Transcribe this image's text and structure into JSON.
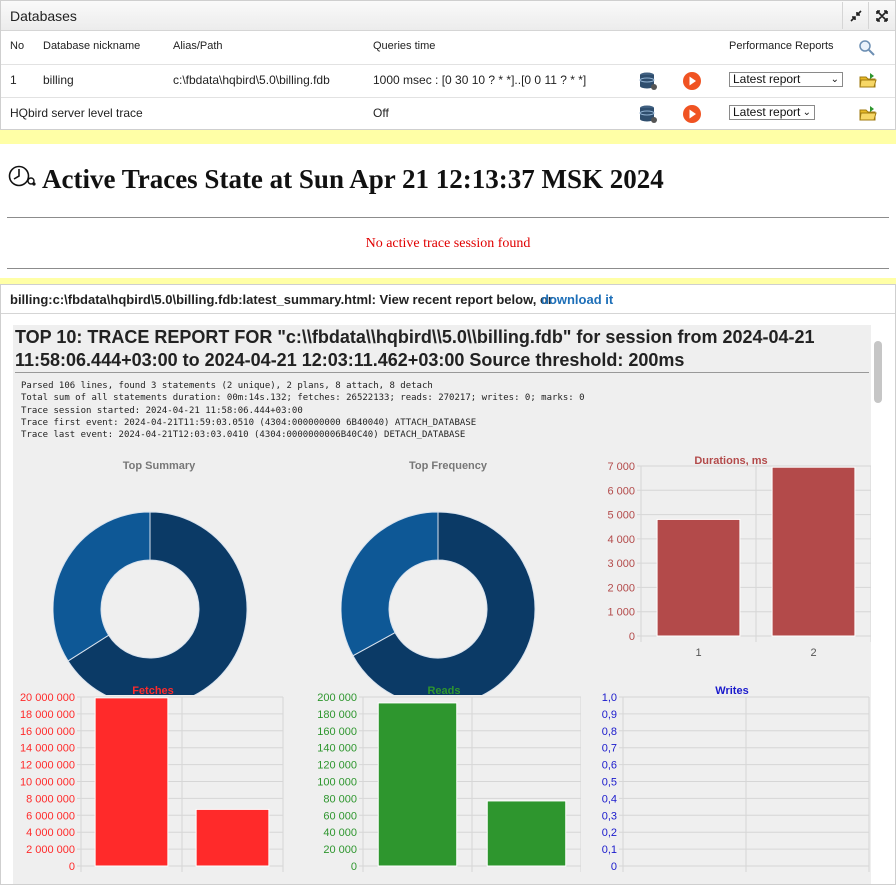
{
  "databases": {
    "title": "Databases",
    "columns": {
      "no": "No",
      "nickname": "Database nickname",
      "alias": "Alias/Path",
      "queries_time": "Queries time",
      "reports": "Performance Reports"
    },
    "rows": [
      {
        "no": "1",
        "nickname": "billing",
        "alias": "c:\\fbdata\\hqbird\\5.0\\billing.fdb",
        "queries_time": "1000 msec : [0 30 10 ? * *]..[0 0 11 ? * *]",
        "report": "Latest report"
      },
      {
        "no": "",
        "nickname": "HQbird server level trace",
        "alias": "",
        "queries_time": "Off",
        "report": "Latest report"
      }
    ]
  },
  "active_traces": {
    "title": "Active Traces State at Sun Apr 21 12:13:37 MSK 2024",
    "message": "No active trace session found"
  },
  "report": {
    "path_text": "billing:c:\\fbdata\\hqbird\\5.0\\billing.fdb:latest_summary.html: View recent report below, or",
    "download_link": "download it",
    "title": "TOP 10: TRACE REPORT FOR \"c:\\\\fbdata\\\\hqbird\\\\5.0\\\\billing.fdb\" for session from 2024-04-21 11:58:06.444+03:00 to 2024-04-21 12:03:11.462+03:00 Source threshold: 200ms",
    "lines": [
      "Parsed 106 lines, found 3 statements (2 unique), 2 plans, 8 attach, 8 detach",
      "Total sum of all statements duration: 00m:14s.132; fetches: 26522133; reads: 270217; writes: 0; marks: 0",
      "Trace session started: 2024-04-21 11:58:06.444+03:00",
      "Trace first event: 2024-04-21T11:59:03.0510 (4304:000000000 6B40040) ATTACH_DATABASE",
      "Trace last event: 2024-04-21T12:03:03.0410 (4304:0000000006B40C40) DETACH_DATABASE"
    ]
  },
  "colors": {
    "donut_dark": "#0b3a66",
    "donut_light": "#0e5896",
    "durations": "#b34a4a",
    "fetches": "#ff2a2a",
    "reads": "#2e962e",
    "writes": "#1a1acc",
    "play": "#f05322"
  },
  "icons": [
    "restore-icon",
    "maximize-icon",
    "search-icon",
    "database-icon",
    "play-icon",
    "open-folder-icon"
  ],
  "chart_data": [
    {
      "type": "pie",
      "title": "Top Summary",
      "values": [
        66,
        34
      ],
      "donut": true
    },
    {
      "type": "pie",
      "title": "Top Frequency",
      "values": [
        67,
        33
      ],
      "donut": true
    },
    {
      "type": "bar",
      "title": "Durations, ms",
      "categories": [
        "1",
        "2"
      ],
      "values": [
        4800,
        6950
      ],
      "ylim": [
        0,
        7000
      ],
      "yticks": [
        "0",
        "1 000",
        "2 000",
        "3 000",
        "4 000",
        "5 000",
        "6 000",
        "7 000"
      ]
    },
    {
      "type": "bar",
      "title": "Fetches",
      "categories": [
        "",
        ""
      ],
      "values": [
        19900000,
        6700000
      ],
      "ylim": [
        0,
        20000000
      ],
      "yticks": [
        "0",
        "2 000 000",
        "4 000 000",
        "6 000 000",
        "8 000 000",
        "10 000 000",
        "12 000 000",
        "14 000 000",
        "16 000 000",
        "18 000 000",
        "20 000 000"
      ]
    },
    {
      "type": "bar",
      "title": "Reads",
      "categories": [
        "",
        ""
      ],
      "values": [
        193000,
        77000
      ],
      "ylim": [
        0,
        200000
      ],
      "yticks": [
        "0",
        "20 000",
        "40 000",
        "60 000",
        "80 000",
        "100 000",
        "120 000",
        "140 000",
        "160 000",
        "180 000",
        "200 000"
      ]
    },
    {
      "type": "bar",
      "title": "Writes",
      "categories": [
        "",
        ""
      ],
      "values": [
        0,
        0
      ],
      "ylim": [
        0,
        1
      ],
      "yticks": [
        "0",
        "0,1",
        "0,2",
        "0,3",
        "0,4",
        "0,5",
        "0,6",
        "0,7",
        "0,8",
        "0,9",
        "1,0"
      ]
    }
  ]
}
